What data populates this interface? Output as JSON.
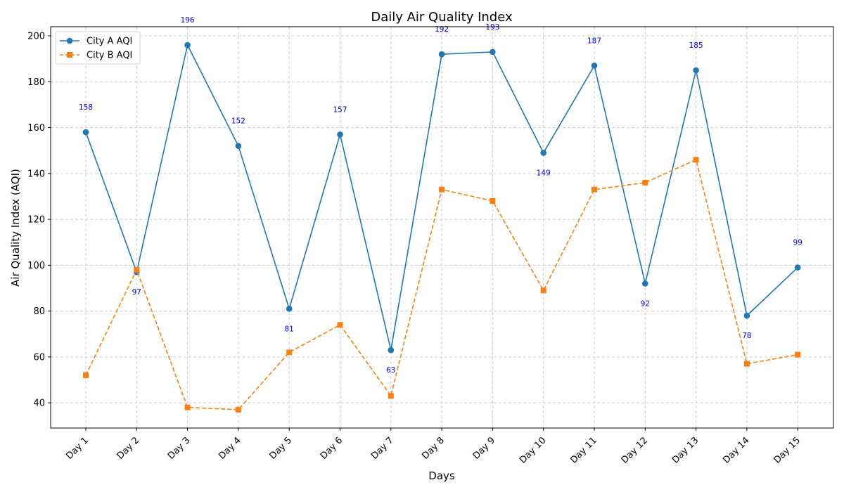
{
  "chart_data": {
    "type": "line",
    "title": "Daily Air Quality Index",
    "xlabel": "Days",
    "ylabel": "Air Quality Index (AQI)",
    "categories": [
      "Day 1",
      "Day 2",
      "Day 3",
      "Day 4",
      "Day 5",
      "Day 6",
      "Day 7",
      "Day 8",
      "Day 9",
      "Day 10",
      "Day 11",
      "Day 12",
      "Day 13",
      "Day 14",
      "Day 15"
    ],
    "ylim": [
      29,
      204
    ],
    "yticks": [
      40,
      60,
      80,
      100,
      120,
      140,
      160,
      180,
      200
    ],
    "grid": true,
    "legend_position": "top-left",
    "series": [
      {
        "name": "City A AQI",
        "values": [
          158,
          97,
          196,
          152,
          81,
          157,
          63,
          192,
          193,
          149,
          187,
          92,
          185,
          78,
          99
        ],
        "color": "#1f77b4",
        "marker": "circle",
        "line_style": "solid",
        "data_labels": [
          "158",
          "97",
          "196",
          "152",
          "81",
          "157",
          "63",
          "192",
          "193",
          "149",
          "187",
          "92",
          "185",
          "78",
          "99"
        ]
      },
      {
        "name": "City B AQI",
        "values": [
          52,
          98,
          38,
          37,
          62,
          74,
          43,
          133,
          128,
          89,
          133,
          136,
          146,
          57,
          61
        ],
        "color": "#ff7f0e",
        "marker": "square",
        "line_style": "dashed"
      }
    ],
    "label_color": "#0000ff"
  }
}
